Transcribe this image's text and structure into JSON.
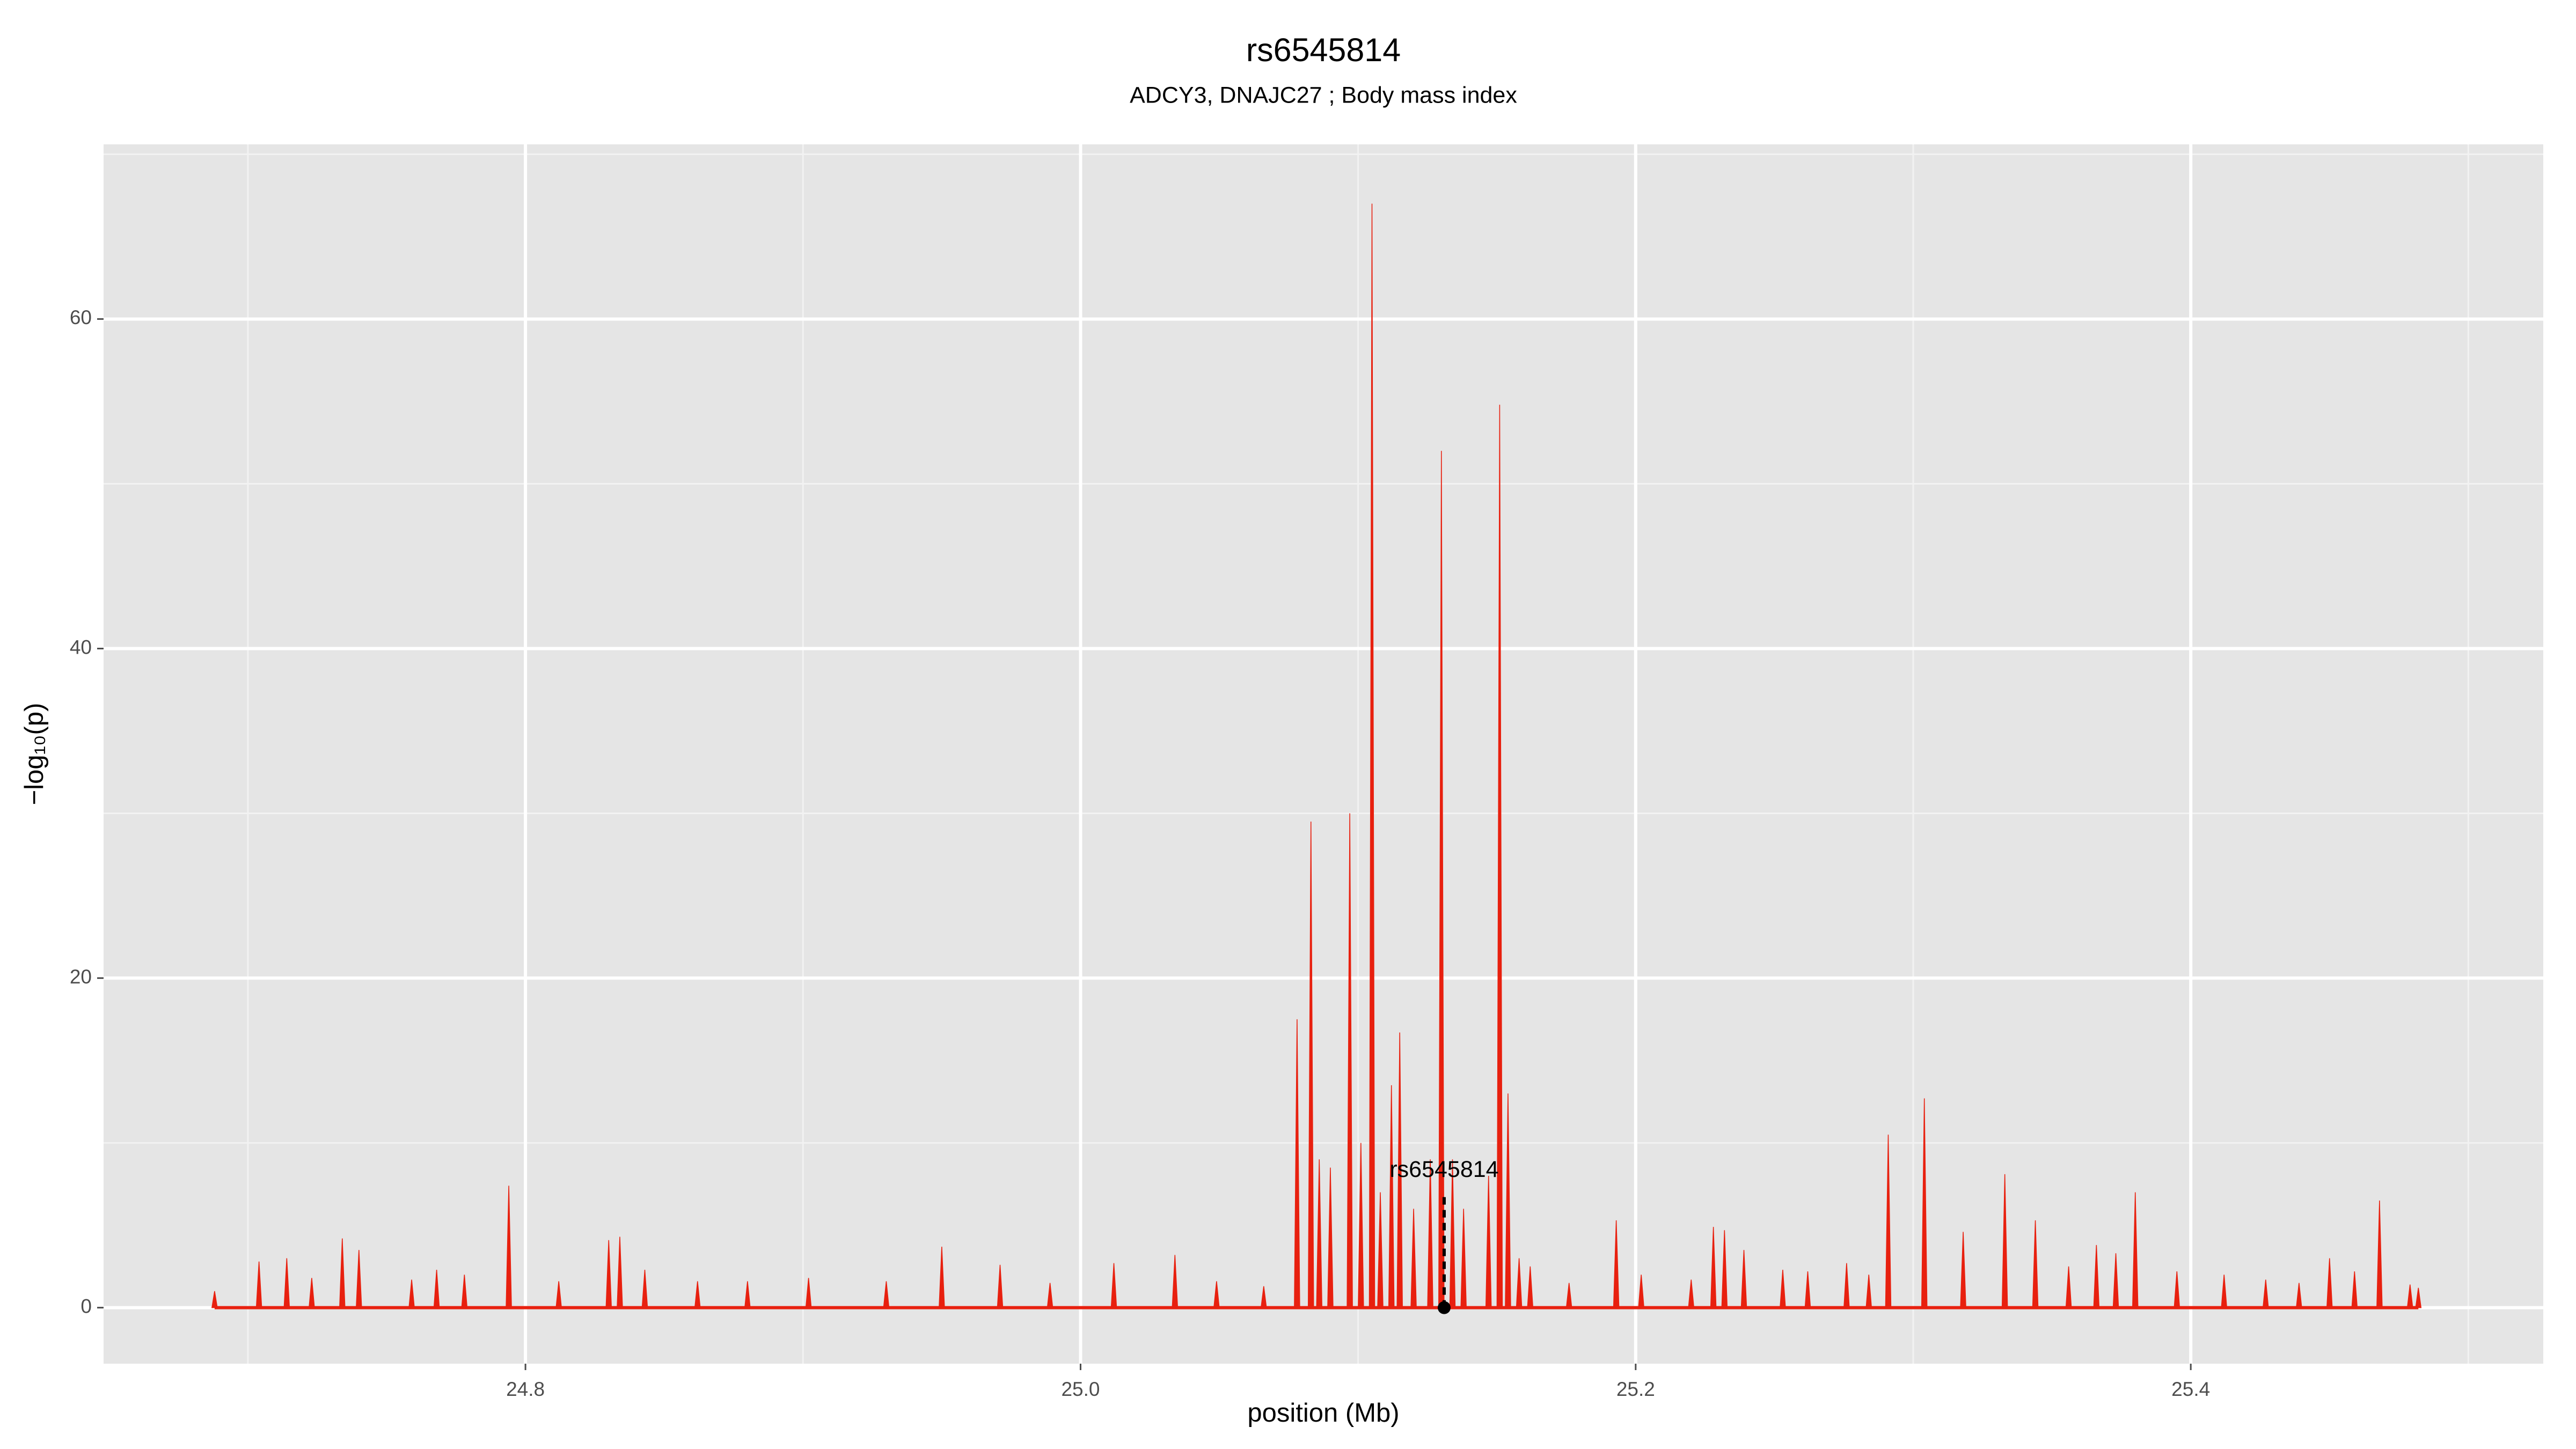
{
  "chart_data": {
    "type": "spike",
    "title": "rs6545814",
    "subtitle": "ADCY3, DNAJC27 ; Body mass index",
    "xlabel": "position (Mb)",
    "ylabel": "−log₁₀(p)",
    "xlim": [
      24.648,
      25.527
    ],
    "ylim": [
      -3.4,
      70.6
    ],
    "xticks": [
      24.8,
      {
        "value": 25,
        "label": "25.0"
      },
      25.2,
      25.4
    ],
    "yticks": [
      0,
      20,
      40,
      60
    ],
    "xminor": [
      24.7,
      24.9,
      25.1,
      25.3,
      25.5
    ],
    "yminor": [
      10,
      30,
      50,
      70
    ],
    "grid": true,
    "color": "#e8200f",
    "x": [
      24.688,
      24.704,
      24.714,
      24.723,
      24.734,
      24.74,
      24.759,
      24.768,
      24.778,
      24.794,
      24.812,
      24.83,
      24.834,
      24.843,
      24.862,
      24.88,
      24.902,
      24.93,
      24.95,
      24.971,
      24.989,
      25.012,
      25.034,
      25.049,
      25.066,
      25.078,
      25.083,
      25.086,
      25.09,
      25.097,
      25.101,
      25.105,
      25.108,
      25.112,
      25.115,
      25.12,
      25.126,
      25.13,
      25.134,
      25.138,
      25.147,
      25.151,
      25.154,
      25.158,
      25.162,
      25.176,
      25.193,
      25.202,
      25.22,
      25.228,
      25.232,
      25.239,
      25.253,
      25.262,
      25.276,
      25.284,
      25.291,
      25.304,
      25.318,
      25.333,
      25.344,
      25.356,
      25.366,
      25.373,
      25.38,
      25.395,
      25.412,
      25.427,
      25.439,
      25.45,
      25.459,
      25.468,
      25.479,
      25.482
    ],
    "values": [
      1,
      2.8,
      3,
      1.8,
      4.2,
      3.5,
      1.7,
      2.3,
      2,
      7.4,
      1.6,
      4.1,
      4.3,
      2.3,
      1.6,
      1.6,
      1.8,
      1.6,
      3.7,
      2.6,
      1.5,
      2.7,
      3.2,
      1.6,
      1.3,
      17.5,
      29.5,
      9,
      8.5,
      30,
      10,
      67,
      7,
      13.5,
      16.7,
      6,
      9,
      52,
      9,
      6,
      8,
      54.8,
      13,
      3,
      2.5,
      1.5,
      5.3,
      2,
      1.7,
      4.9,
      4.7,
      3.5,
      2.3,
      2.2,
      2.7,
      2,
      10.5,
      12.7,
      4.6,
      8.1,
      5.3,
      2.5,
      3.8,
      3.3,
      7,
      2.2,
      2,
      1.7,
      1.5,
      3,
      2.2,
      6.5,
      1.4,
      1.2
    ],
    "highlight": {
      "label": "rs6545814",
      "x": 25.131,
      "y": 0
    }
  }
}
